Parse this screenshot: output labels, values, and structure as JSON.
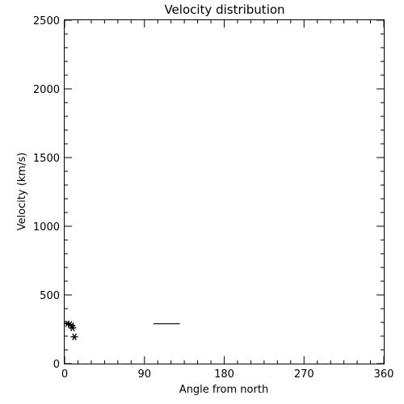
{
  "chart_data": {
    "type": "scatter",
    "title": "Velocity distribution",
    "xlabel": "Angle from north",
    "ylabel": "Velocity (km/s)",
    "xlim": [
      0,
      360
    ],
    "ylim": [
      0,
      2500
    ],
    "xticks": [
      0,
      90,
      180,
      270,
      360
    ],
    "yticks": [
      0,
      500,
      1000,
      1500,
      2000,
      2500
    ],
    "xtick_labels": [
      "0",
      "90",
      "180",
      "270",
      "360"
    ],
    "ytick_labels": [
      "0",
      "500",
      "1000",
      "1500",
      "2000",
      "2500"
    ],
    "grid": false,
    "points": [
      {
        "x": 3,
        "y": 290
      },
      {
        "x": 6,
        "y": 285
      },
      {
        "x": 8,
        "y": 275
      },
      {
        "x": 9,
        "y": 260
      },
      {
        "x": 11,
        "y": 195
      }
    ],
    "reference_segment": {
      "x_start": 100,
      "x_end": 130,
      "y": 290
    },
    "colors": {
      "foreground": "#000000",
      "background": "#ffffff"
    }
  }
}
